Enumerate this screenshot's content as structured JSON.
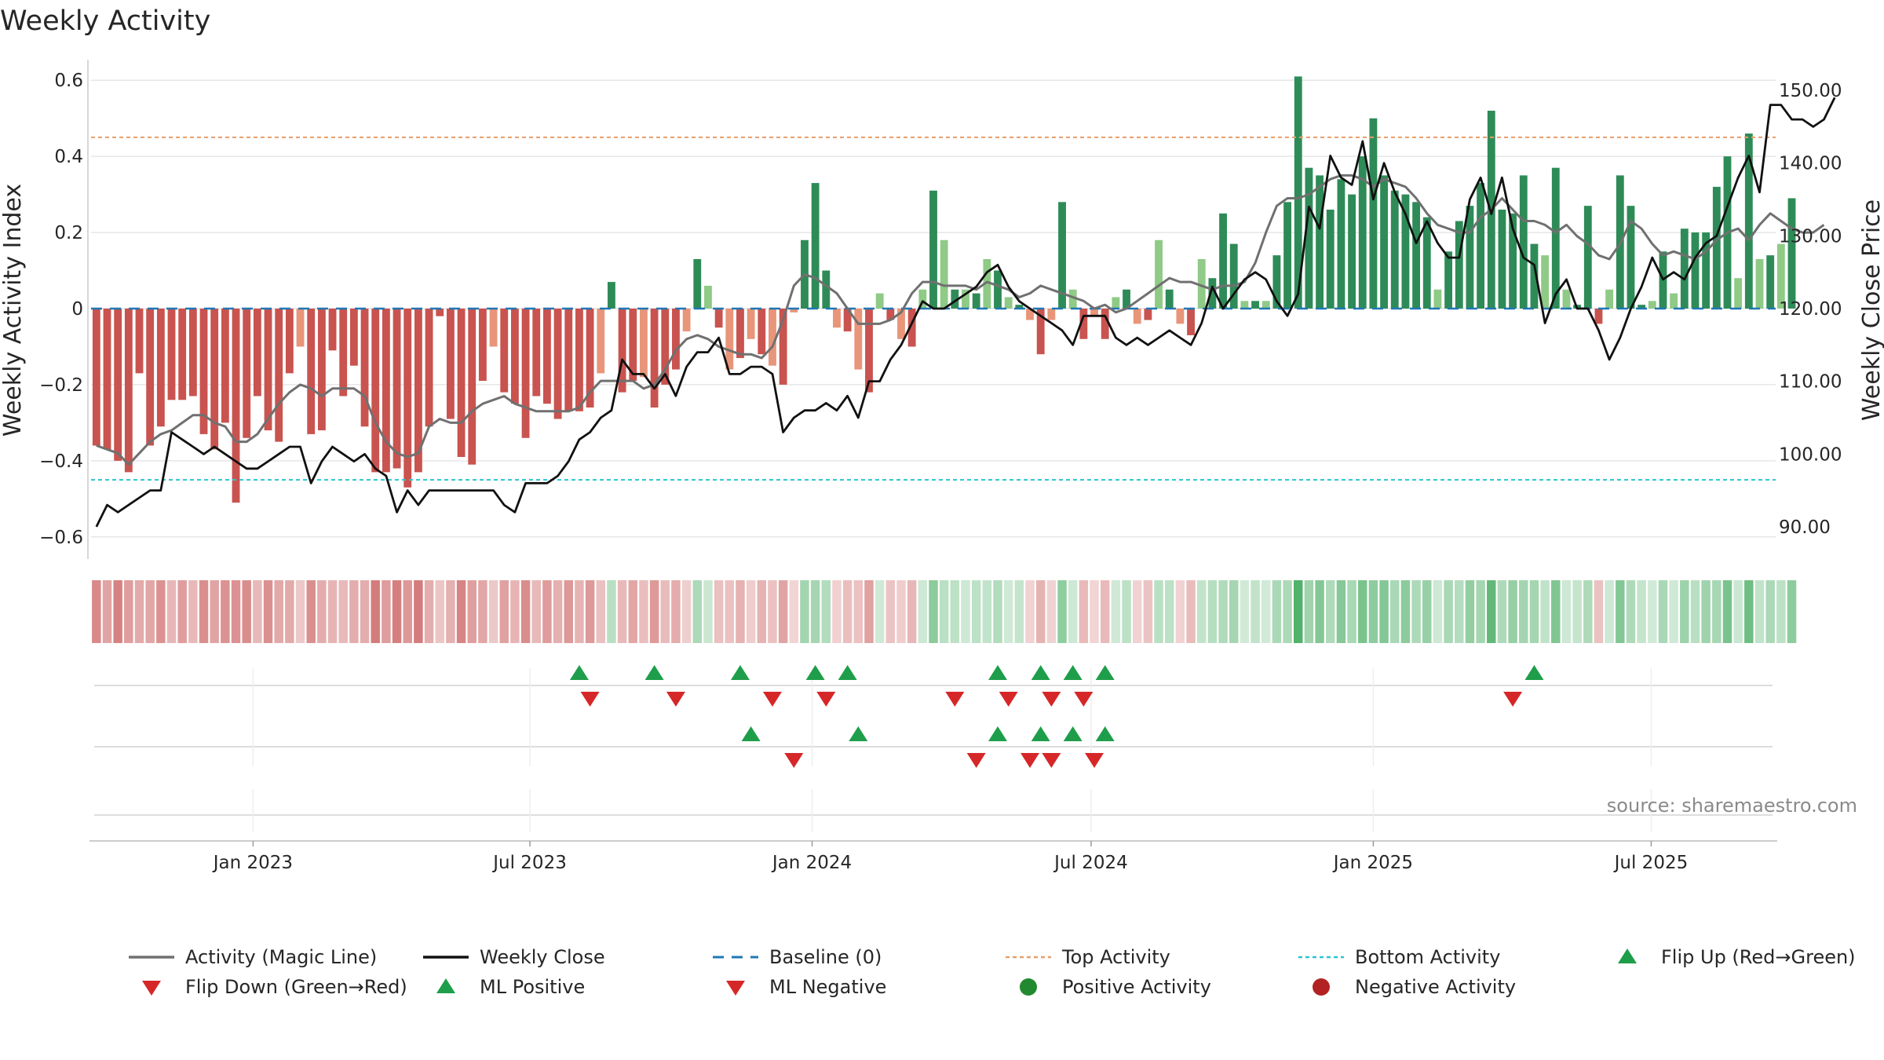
{
  "chart_data": {
    "type": "bar",
    "title": "Weekly Activity",
    "ylabel_left": "Weekly Activity Index",
    "ylabel_right": "Weekly Close Price",
    "left_ylim": [
      -0.65,
      0.65
    ],
    "left_yticks": [
      0.6,
      0.4,
      0.2,
      0,
      -0.2,
      -0.4,
      -0.6
    ],
    "left_ytick_labels": [
      "0.6",
      "0.4",
      "0.2",
      "0",
      "−0.2",
      "−0.4",
      "−0.6"
    ],
    "right_ylim": [
      86,
      154
    ],
    "right_yticks": [
      150,
      140,
      130,
      120,
      110,
      100,
      90
    ],
    "right_ytick_labels": [
      "150.00",
      "140.00",
      "130.00",
      "120.00",
      "110.00",
      "100.00",
      "90.00"
    ],
    "x_range_week_index": [
      0,
      156
    ],
    "x_ticks": [
      {
        "label": "Jan 2023",
        "week": 14.6
      },
      {
        "label": "Jul 2023",
        "week": 40.4
      },
      {
        "label": "Jan 2024",
        "week": 66.7
      },
      {
        "label": "Jul 2024",
        "week": 92.7
      },
      {
        "label": "Jan 2025",
        "week": 119.0
      },
      {
        "label": "Jul 2025",
        "week": 144.9
      }
    ],
    "top_activity": 0.45,
    "bottom_activity": -0.45,
    "baseline": 0,
    "weekly_activity": [
      -0.36,
      -0.37,
      -0.4,
      -0.43,
      -0.17,
      -0.36,
      -0.31,
      -0.24,
      -0.24,
      -0.23,
      -0.33,
      -0.37,
      -0.3,
      -0.51,
      -0.34,
      -0.23,
      -0.32,
      -0.35,
      -0.17,
      -0.1,
      -0.33,
      -0.32,
      -0.11,
      -0.23,
      -0.15,
      -0.31,
      -0.43,
      -0.43,
      -0.42,
      -0.47,
      -0.43,
      -0.31,
      -0.02,
      -0.29,
      -0.39,
      -0.41,
      -0.19,
      -0.1,
      -0.22,
      -0.25,
      -0.34,
      -0.23,
      -0.25,
      -0.29,
      -0.27,
      -0.27,
      -0.26,
      -0.17,
      0.07,
      -0.22,
      -0.19,
      -0.18,
      -0.26,
      -0.2,
      -0.16,
      -0.06,
      0.13,
      0.06,
      -0.05,
      -0.16,
      -0.13,
      -0.08,
      -0.12,
      -0.15,
      -0.2,
      -0.01,
      0.18,
      0.33,
      0.1,
      -0.05,
      -0.06,
      -0.16,
      -0.22,
      0.04,
      -0.03,
      -0.08,
      -0.1,
      0.05,
      0.31,
      0.18,
      0.05,
      0.05,
      0.04,
      0.13,
      0.1,
      0.03,
      0.01,
      -0.03,
      -0.12,
      -0.03,
      0.28,
      0.05,
      -0.08,
      -0.02,
      -0.08,
      0.03,
      0.05,
      -0.04,
      -0.03,
      0.18,
      0.05,
      -0.04,
      -0.07,
      0.13,
      0.08,
      0.25,
      0.17,
      0.02,
      0.02,
      0.02,
      0.14,
      0.28,
      0.61,
      0.37,
      0.35,
      0.26,
      0.34,
      0.3,
      0.4,
      0.5,
      0.35,
      0.31,
      0.3,
      0.28,
      0.24,
      0.05,
      0.15,
      0.23,
      0.27,
      0.33,
      0.52,
      0.26,
      0.25,
      0.35,
      0.17,
      0.14,
      0.37,
      0.05,
      0.01,
      0.27,
      -0.04,
      0.05,
      0.35,
      0.27,
      0.01,
      0.02,
      0.15,
      0.04,
      0.21,
      0.2,
      0.2,
      0.32,
      0.4,
      0.08,
      0.46,
      0.13,
      0.14,
      0.17,
      0.29
    ],
    "magic_line": [
      -0.36,
      -0.37,
      -0.38,
      -0.41,
      -0.38,
      -0.35,
      -0.33,
      -0.32,
      -0.3,
      -0.28,
      -0.28,
      -0.3,
      -0.31,
      -0.35,
      -0.35,
      -0.33,
      -0.29,
      -0.25,
      -0.22,
      -0.2,
      -0.21,
      -0.23,
      -0.21,
      -0.21,
      -0.21,
      -0.23,
      -0.3,
      -0.35,
      -0.38,
      -0.39,
      -0.38,
      -0.31,
      -0.29,
      -0.3,
      -0.3,
      -0.27,
      -0.25,
      -0.24,
      -0.23,
      -0.25,
      -0.26,
      -0.27,
      -0.27,
      -0.27,
      -0.27,
      -0.26,
      -0.22,
      -0.19,
      -0.19,
      -0.19,
      -0.19,
      -0.21,
      -0.2,
      -0.16,
      -0.11,
      -0.08,
      -0.07,
      -0.08,
      -0.1,
      -0.11,
      -0.12,
      -0.12,
      -0.13,
      -0.1,
      -0.03,
      0.06,
      0.09,
      0.08,
      0.06,
      0.04,
      0.0,
      -0.04,
      -0.04,
      -0.04,
      -0.03,
      -0.01,
      0.04,
      0.07,
      0.07,
      0.06,
      0.06,
      0.06,
      0.05,
      0.07,
      0.06,
      0.05,
      0.03,
      0.04,
      0.06,
      0.05,
      0.04,
      0.03,
      0.02,
      0.0,
      0.01,
      -0.01,
      0.0,
      0.02,
      0.04,
      0.06,
      0.08,
      0.07,
      0.07,
      0.06,
      0.05,
      0.06,
      0.06,
      0.07,
      0.12,
      0.2,
      0.27,
      0.29,
      0.29,
      0.3,
      0.32,
      0.34,
      0.35,
      0.35,
      0.34,
      0.32,
      0.34,
      0.33,
      0.32,
      0.29,
      0.25,
      0.22,
      0.21,
      0.2,
      0.2,
      0.24,
      0.26,
      0.29,
      0.26,
      0.23,
      0.23,
      0.22,
      0.2,
      0.22,
      0.19,
      0.17,
      0.14,
      0.13,
      0.17,
      0.23,
      0.21,
      0.17,
      0.14,
      0.15,
      0.14,
      0.13,
      0.15,
      0.18,
      0.2,
      0.21,
      0.18,
      0.22,
      0.25,
      0.23,
      0.21,
      0.2,
      0.2,
      0.22
    ],
    "weekly_close": [
      90,
      93,
      92,
      93,
      94,
      95,
      95,
      103,
      102,
      101,
      100,
      101,
      100,
      99,
      98,
      98,
      99,
      100,
      101,
      101,
      96,
      99,
      101,
      100,
      99,
      100,
      98,
      97,
      92,
      95,
      93,
      95,
      95,
      95,
      95,
      95,
      95,
      95,
      93,
      92,
      96,
      96,
      96,
      97,
      99,
      102,
      103,
      105,
      106,
      113,
      111,
      111,
      109,
      111,
      108,
      112,
      114,
      114,
      116,
      111,
      111,
      112,
      112,
      111,
      103,
      105,
      106,
      106,
      107,
      106,
      108,
      105,
      110,
      110,
      113,
      115,
      118,
      121,
      120,
      120,
      121,
      122,
      123,
      125,
      126,
      123,
      121,
      120,
      119,
      118,
      117,
      115,
      119,
      119,
      119,
      116,
      115,
      116,
      115,
      116,
      117,
      116,
      115,
      118,
      123,
      120,
      122,
      124,
      125,
      124,
      121,
      119,
      122,
      134,
      131,
      141,
      138,
      137,
      143,
      135,
      140,
      136,
      133,
      129,
      132,
      129,
      127,
      127,
      135,
      138,
      133,
      138,
      131,
      127,
      126,
      118,
      122,
      124,
      120,
      120,
      117,
      113,
      116,
      120,
      123,
      127,
      124,
      125,
      124,
      127,
      129,
      130,
      134,
      138,
      141,
      136,
      148,
      148,
      146,
      146,
      145,
      146,
      149
    ],
    "strip_alternating_shade": true,
    "strip_note": "Heatmap strip below main panel colours each week red (negative) or green (positive); intensity follows magnitude.",
    "signals_row1_flip_up_weeks": [
      45,
      52,
      60,
      67,
      70,
      84,
      88,
      91,
      94,
      134
    ],
    "signals_row1_flip_down_weeks": [
      46,
      54,
      63,
      68,
      80,
      85,
      89,
      92,
      132
    ],
    "signals_row2_ml_positive_weeks": [
      61,
      71,
      84,
      88,
      91,
      94
    ],
    "signals_row2_ml_negative_weeks": [
      65,
      82,
      87,
      89,
      93
    ],
    "signals_row3_weeks": [],
    "source": "source: sharemaestro.com",
    "legend": [
      {
        "label": "Activity (Magic Line)",
        "kind": "line",
        "color": "#707070"
      },
      {
        "label": "Weekly Close",
        "kind": "line",
        "color": "#111111"
      },
      {
        "label": "Baseline (0)",
        "kind": "dash",
        "color": "#1f77b4"
      },
      {
        "label": "Top Activity",
        "kind": "dot",
        "color": "#e69f6a"
      },
      {
        "label": "Bottom Activity",
        "kind": "dot",
        "color": "#2bc4cf"
      },
      {
        "label": "Flip Up (Red→Green)",
        "kind": "tri-up",
        "color": "#1e9e4a"
      },
      {
        "label": "Flip Down (Green→Red)",
        "kind": "tri-down",
        "color": "#d62728"
      },
      {
        "label": "ML Positive",
        "kind": "tri-up",
        "color": "#1e9e4a"
      },
      {
        "label": "ML Negative",
        "kind": "tri-down",
        "color": "#d62728"
      },
      {
        "label": "Positive Activity",
        "kind": "circle",
        "color": "#22892f"
      },
      {
        "label": "Negative Activity",
        "kind": "circle",
        "color": "#b22222"
      }
    ],
    "colors": {
      "pos_strong": "#2e8b57",
      "pos_light": "#8fca86",
      "neg_strong": "#c9534f",
      "neg_light": "#e8957a",
      "magic_line": "#707070",
      "close": "#111111",
      "baseline": "#1f77b4",
      "top": "#e69f6a",
      "bottom": "#2bc4cf",
      "tri_up": "#1e9e4a",
      "tri_down": "#d62728",
      "grid": "#e6e6e6"
    }
  }
}
